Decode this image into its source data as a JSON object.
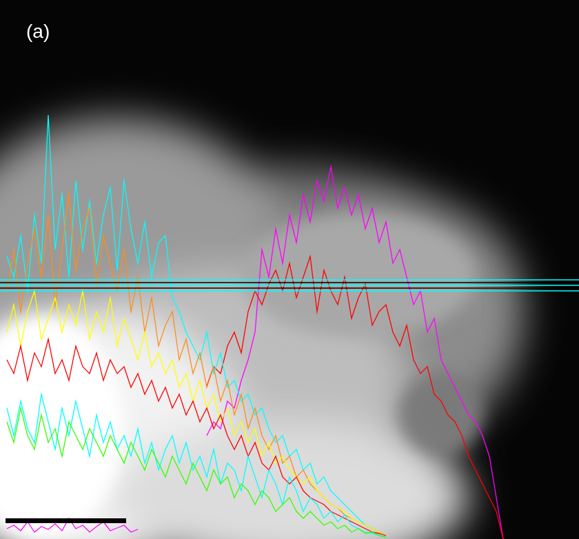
{
  "chart_data": {
    "type": "line",
    "annotations": [
      "(a)"
    ],
    "xlim": [
      0,
      840
    ],
    "ylim": [
      0,
      782
    ],
    "tick_labels": false,
    "grid": false,
    "series": [
      {
        "color": "#00ffff",
        "x": [
          0,
          840
        ],
        "values": [
          376,
          376
        ]
      },
      {
        "color": "#000000",
        "x": [
          0,
          840
        ],
        "values": [
          372,
          372
        ]
      },
      {
        "color": "#00ffff",
        "x": [
          0,
          840
        ],
        "values": [
          368,
          368
        ]
      },
      {
        "color": "#000000",
        "x": [
          0,
          840
        ],
        "values": [
          364,
          364
        ]
      },
      {
        "color": "#00ffff",
        "x": [
          0,
          840
        ],
        "values": [
          360,
          360
        ]
      },
      {
        "color": "#33ff00",
        "x": [
          10,
          20,
          30,
          40,
          50,
          60,
          70,
          80,
          90,
          100,
          110,
          120,
          130,
          140,
          150,
          160,
          170,
          180,
          190,
          200,
          210,
          220,
          230,
          240,
          250,
          260,
          270,
          280,
          290,
          300,
          310,
          320,
          330,
          340,
          350,
          360,
          370,
          380,
          390,
          400,
          410,
          420,
          430,
          440,
          450,
          460,
          470,
          480,
          490,
          500,
          510,
          520,
          530,
          540,
          550,
          560
        ],
        "values": [
          170,
          140,
          190,
          150,
          130,
          180,
          140,
          160,
          120,
          170,
          150,
          130,
          160,
          140,
          120,
          150,
          130,
          110,
          140,
          120,
          100,
          130,
          110,
          90,
          120,
          100,
          80,
          110,
          90,
          70,
          100,
          80,
          90,
          60,
          80,
          70,
          50,
          70,
          60,
          40,
          50,
          60,
          40,
          30,
          40,
          30,
          20,
          25,
          15,
          20,
          10,
          15,
          8,
          10,
          5,
          3
        ]
      },
      {
        "color": "#00ffff",
        "x": [
          10,
          20,
          30,
          40,
          50,
          60,
          70,
          80,
          90,
          100,
          110,
          120,
          130,
          140,
          150,
          160,
          170,
          180,
          190,
          200,
          210,
          220,
          230,
          240,
          250,
          260,
          270,
          280,
          290,
          300,
          310,
          320,
          330,
          340,
          350,
          360,
          370,
          380,
          390,
          400,
          410,
          420,
          430,
          440,
          450,
          460,
          470,
          480,
          490,
          500,
          510,
          520,
          530,
          540,
          550,
          560
        ],
        "values": [
          190,
          150,
          200,
          160,
          140,
          210,
          170,
          130,
          190,
          150,
          200,
          160,
          120,
          180,
          140,
          170,
          130,
          150,
          120,
          160,
          110,
          140,
          100,
          130,
          150,
          110,
          140,
          100,
          120,
          90,
          130,
          80,
          110,
          100,
          70,
          120,
          90,
          60,
          100,
          80,
          50,
          90,
          70,
          40,
          60,
          50,
          30,
          40,
          25,
          35,
          20,
          15,
          10,
          8,
          5,
          3
        ]
      },
      {
        "color": "#ff0000",
        "x": [
          10,
          20,
          30,
          40,
          50,
          60,
          70,
          80,
          90,
          100,
          110,
          120,
          130,
          140,
          150,
          160,
          170,
          180,
          190,
          200,
          210,
          220,
          230,
          240,
          250,
          260,
          270,
          280,
          290,
          300,
          310,
          320,
          330,
          340,
          350,
          360,
          370,
          380,
          390,
          400,
          410,
          420,
          430,
          440,
          450,
          460,
          470,
          480,
          490,
          500,
          510,
          520,
          530,
          540,
          550,
          560
        ],
        "values": [
          260,
          240,
          280,
          230,
          270,
          250,
          290,
          240,
          260,
          230,
          280,
          250,
          240,
          270,
          230,
          260,
          240,
          250,
          220,
          240,
          210,
          230,
          200,
          220,
          190,
          210,
          180,
          200,
          170,
          190,
          160,
          180,
          150,
          130,
          150,
          120,
          140,
          110,
          100,
          120,
          90,
          80,
          90,
          70,
          60,
          55,
          50,
          40,
          35,
          30,
          25,
          20,
          15,
          10,
          8,
          5
        ]
      },
      {
        "color": "#ffff00",
        "x": [
          10,
          20,
          30,
          40,
          50,
          60,
          70,
          80,
          90,
          100,
          110,
          120,
          130,
          140,
          150,
          160,
          170,
          180,
          190,
          200,
          210,
          220,
          230,
          240,
          250,
          260,
          270,
          280,
          290,
          300,
          310,
          320,
          330,
          340,
          350,
          360,
          370,
          380,
          390,
          400,
          410,
          420,
          430,
          440,
          450,
          460,
          470,
          480,
          490,
          500,
          510,
          520,
          530,
          540,
          550,
          560
        ],
        "values": [
          300,
          340,
          280,
          330,
          360,
          290,
          320,
          350,
          300,
          340,
          310,
          360,
          290,
          330,
          300,
          350,
          280,
          320,
          290,
          260,
          300,
          250,
          270,
          240,
          260,
          220,
          240,
          200,
          230,
          190,
          210,
          170,
          190,
          150,
          170,
          140,
          160,
          120,
          140,
          110,
          120,
          100,
          90,
          80,
          90,
          70,
          60,
          50,
          45,
          40,
          30,
          25,
          20,
          15,
          10,
          5
        ]
      },
      {
        "color": "#ff8c1a",
        "x": [
          10,
          20,
          30,
          40,
          50,
          60,
          70,
          80,
          90,
          100,
          110,
          120,
          130,
          140,
          150,
          160,
          170,
          180,
          190,
          200,
          210,
          220,
          230,
          240,
          250,
          260,
          270,
          280,
          290,
          300,
          310,
          320,
          330,
          340,
          350,
          360,
          370,
          380,
          390,
          400,
          410,
          420,
          430,
          440,
          450,
          460,
          470,
          480,
          490,
          500,
          510,
          520,
          530,
          540,
          550,
          560
        ],
        "values": [
          360,
          420,
          330,
          400,
          450,
          380,
          470,
          340,
          420,
          500,
          390,
          450,
          480,
          370,
          440,
          400,
          360,
          420,
          330,
          380,
          300,
          350,
          280,
          310,
          330,
          260,
          290,
          240,
          270,
          220,
          250,
          200,
          230,
          180,
          210,
          160,
          190,
          150,
          130,
          150,
          110,
          120,
          90,
          100,
          80,
          70,
          60,
          50,
          45,
          35,
          30,
          25,
          20,
          15,
          10,
          5
        ]
      },
      {
        "color": "#00ffff",
        "x": [
          10,
          20,
          30,
          40,
          50,
          60,
          70,
          80,
          90,
          100,
          110,
          120,
          130,
          140,
          150,
          160,
          170,
          180,
          190,
          200,
          210,
          220,
          230,
          240,
          250,
          260,
          270,
          280,
          290,
          300,
          310,
          320,
          330,
          340,
          350,
          360,
          370,
          380,
          390,
          400,
          410,
          420,
          430,
          440,
          450,
          460,
          470,
          480,
          490,
          500,
          510,
          520,
          530,
          540,
          550,
          560
        ],
        "values": [
          410,
          380,
          440,
          360,
          470,
          400,
          615,
          420,
          500,
          380,
          520,
          420,
          490,
          400,
          470,
          510,
          390,
          520,
          450,
          400,
          460,
          380,
          430,
          440,
          350,
          330,
          300,
          280,
          260,
          300,
          240,
          270,
          220,
          230,
          200,
          210,
          180,
          190,
          160,
          140,
          150,
          120,
          130,
          100,
          110,
          80,
          90,
          70,
          60,
          50,
          40,
          30,
          20,
          15,
          10,
          5
        ]
      },
      {
        "color": "#ff0000",
        "x": [
          300,
          310,
          320,
          330,
          340,
          350,
          360,
          370,
          380,
          390,
          400,
          410,
          420,
          430,
          440,
          450,
          460,
          470,
          480,
          490,
          500,
          510,
          520,
          530,
          540,
          550,
          560,
          570,
          580,
          590,
          600,
          610,
          620,
          630,
          640,
          650,
          660,
          670,
          680,
          690,
          700,
          710,
          720,
          730
        ],
        "values": [
          222,
          250,
          240,
          280,
          300,
          270,
          330,
          360,
          340,
          370,
          390,
          360,
          400,
          350,
          380,
          410,
          330,
          390,
          360,
          340,
          380,
          320,
          350,
          370,
          310,
          330,
          340,
          300,
          280,
          310,
          260,
          240,
          250,
          210,
          200,
          180,
          170,
          150,
          120,
          100,
          80,
          60,
          40,
          0
        ]
      },
      {
        "color": "#ff00ff",
        "x": [
          300,
          310,
          320,
          330,
          340,
          350,
          360,
          370,
          380,
          390,
          400,
          410,
          420,
          430,
          440,
          450,
          460,
          470,
          480,
          490,
          500,
          510,
          520,
          530,
          540,
          550,
          560,
          570,
          580,
          590,
          600,
          610,
          620,
          630,
          640,
          650,
          660,
          670,
          680,
          690,
          700,
          710,
          720,
          730
        ],
        "values": [
          150,
          170,
          160,
          200,
          190,
          230,
          260,
          300,
          420,
          380,
          450,
          400,
          470,
          430,
          500,
          460,
          520,
          490,
          540,
          480,
          510,
          470,
          500,
          450,
          480,
          430,
          460,
          400,
          420,
          380,
          340,
          360,
          300,
          320,
          260,
          240,
          220,
          200,
          180,
          170,
          150,
          120,
          60,
          0
        ]
      },
      {
        "color": "#ff00ff",
        "x": [
          10,
          20,
          30,
          40,
          50,
          60,
          70,
          80,
          90,
          100,
          110,
          120,
          130,
          140,
          150,
          160,
          170,
          180,
          190,
          200
        ],
        "values": [
          15,
          20,
          12,
          25,
          10,
          18,
          14,
          22,
          12,
          30,
          15,
          20,
          10,
          18,
          25,
          12,
          16,
          20,
          10,
          14
        ]
      }
    ]
  }
}
